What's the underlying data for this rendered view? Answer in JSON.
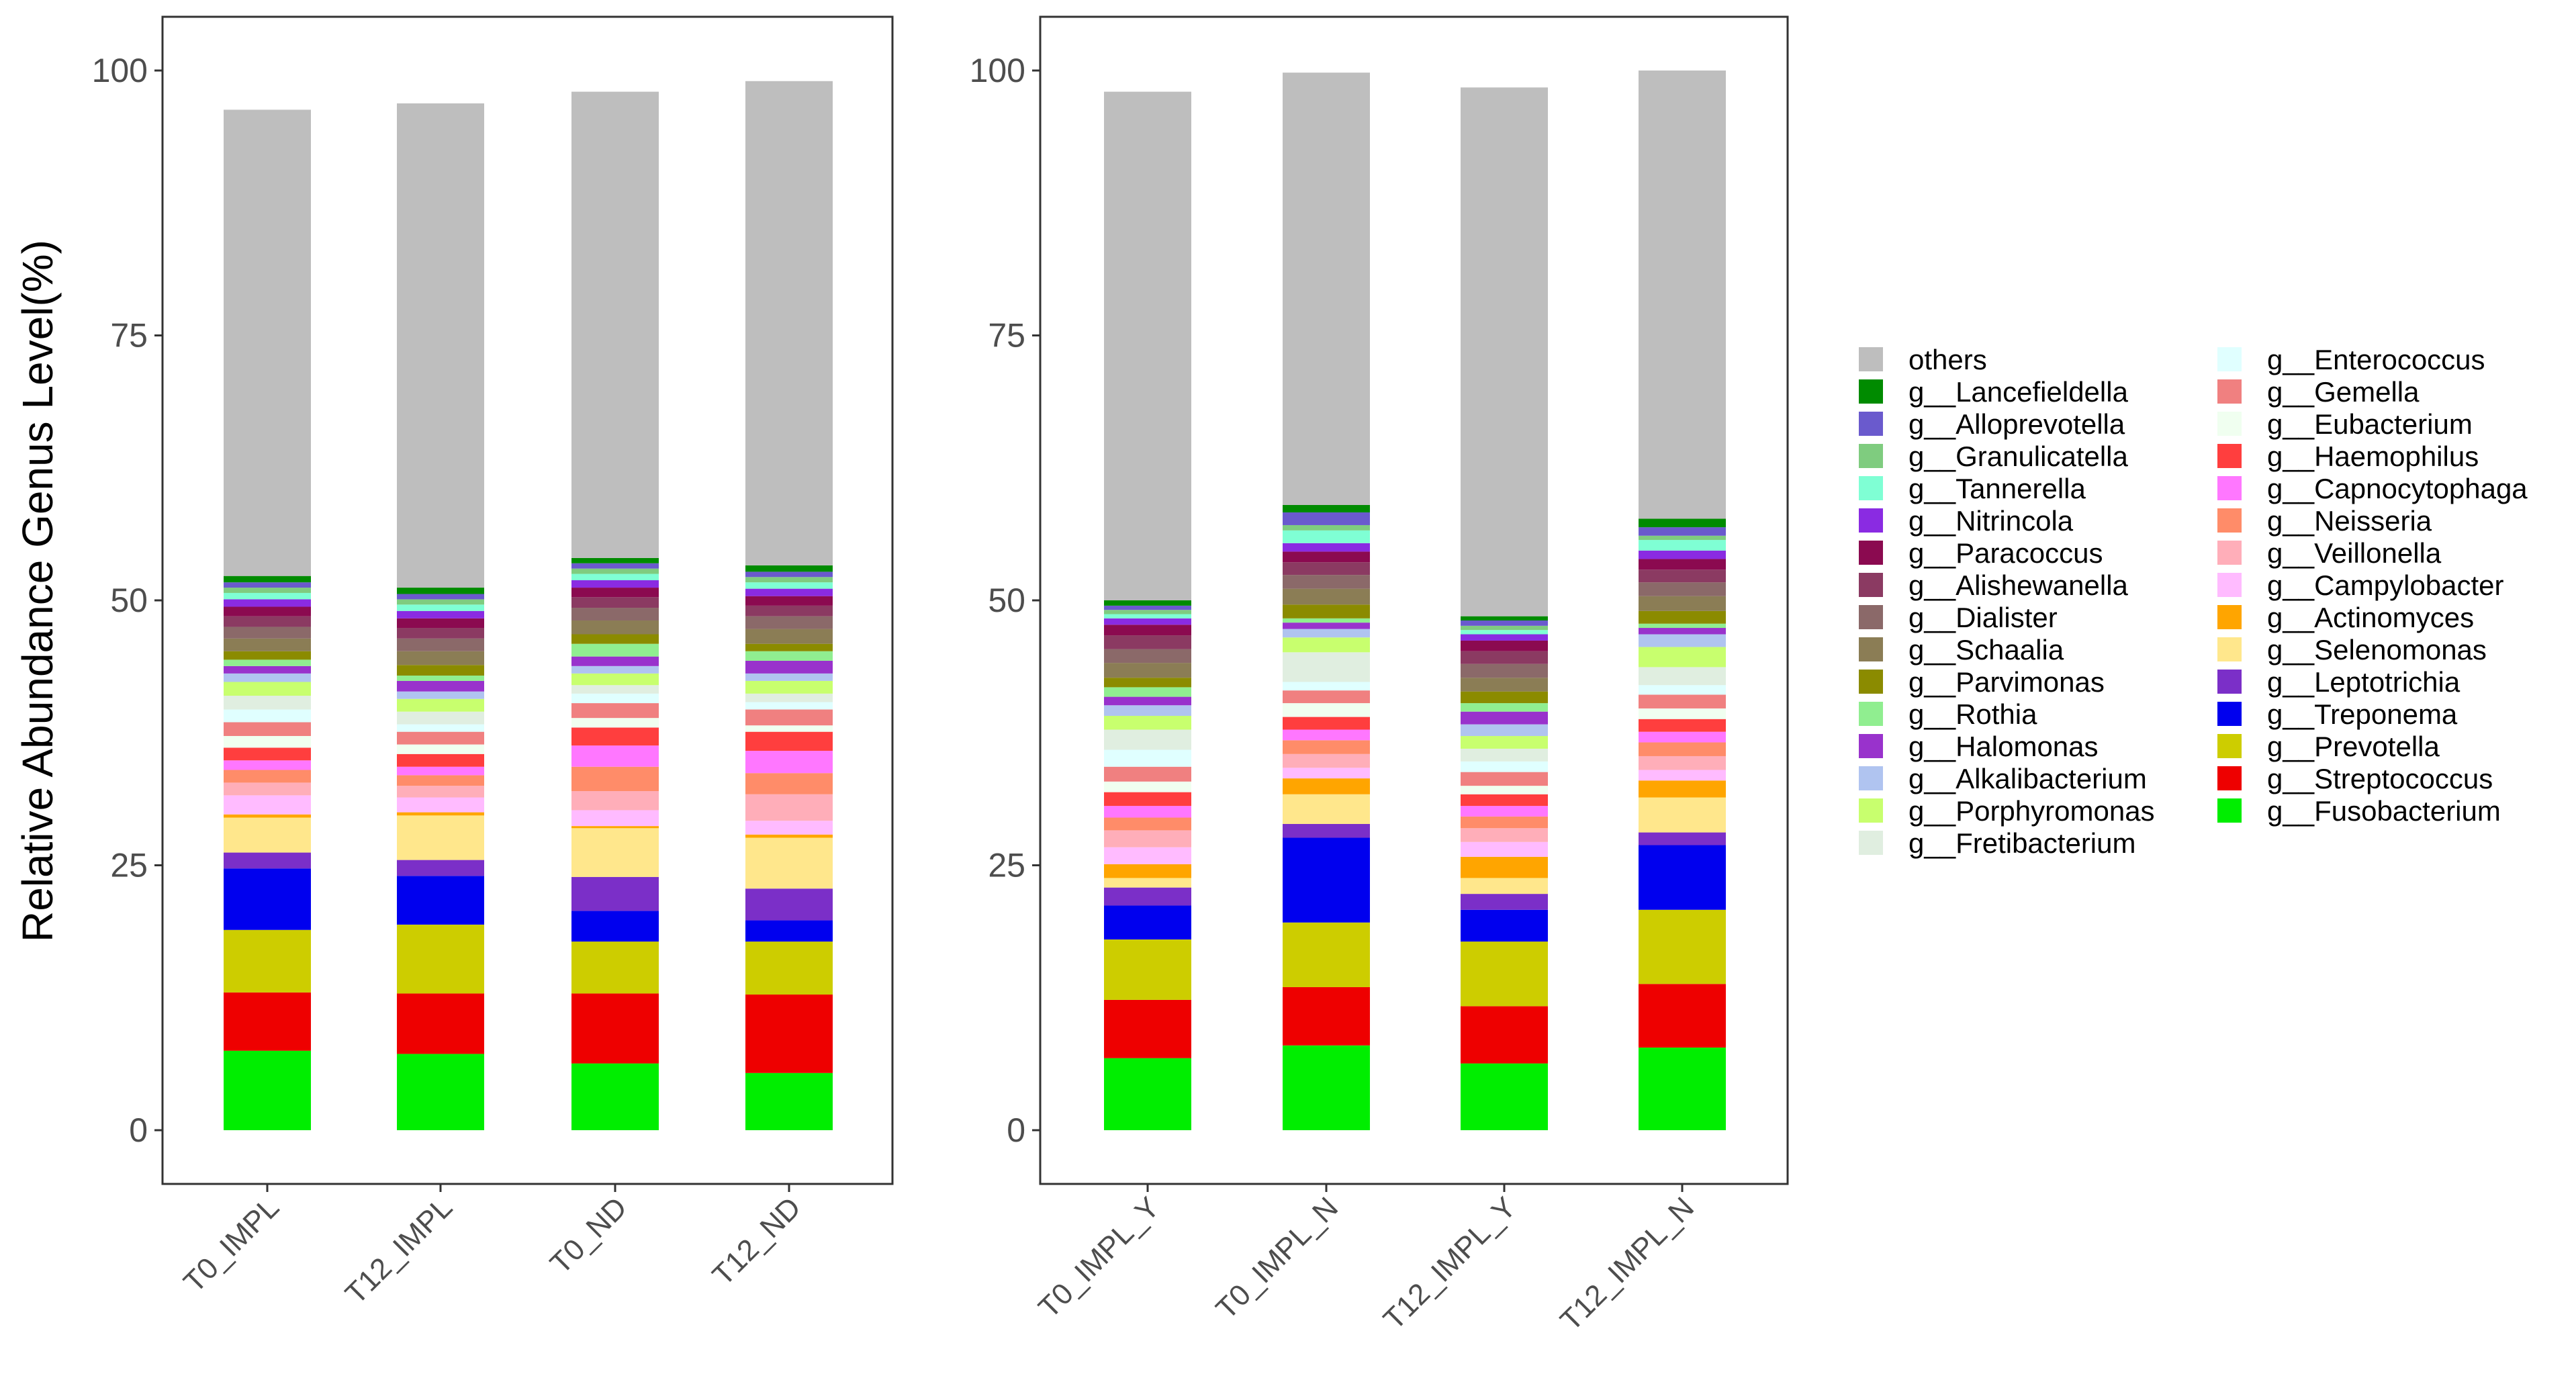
{
  "colors": {
    "others": "#BEBEBE",
    "g__Lancefieldella": "#008B00",
    "g__Alloprevotella": "#6A5ACD",
    "g__Granulicatella": "#7FCC7F",
    "g__Tannerella": "#7FFFD4",
    "g__Nitrincola": "#8A2BE2",
    "g__Paracoccus": "#8B0A50",
    "g__Alishewanella": "#8B3A62",
    "g__Dialister": "#8B6969",
    "g__Schaalia": "#8B7D55",
    "g__Parvimonas": "#8B8B00",
    "g__Rothia": "#90EE90",
    "g__Halomonas": "#9932CC",
    "g__Alkalibacterium": "#B0C4F0",
    "g__Porphyromonas": "#C8FF6E",
    "g__Fretibacterium": "#E0EEE0",
    "g__Enterococcus": "#E0FFFF",
    "g__Gemella": "#F08080",
    "g__Eubacterium": "#F0FFF0",
    "g__Haemophilus": "#FF3E3E",
    "g__Capnocytophaga": "#FF77FF",
    "g__Neisseria": "#FF8C69",
    "g__Veillonella": "#FFAEB9",
    "g__Campylobacter": "#FFBBFF",
    "g__Actinomyces": "#FFA500",
    "g__Selenomonas": "#FFE78C",
    "g__Leptotrichia": "#7B2FC8",
    "g__Treponema": "#0000EE",
    "g__Prevotella": "#CDCD00",
    "g__Streptococcus": "#EE0000",
    "g__Fusobacterium": "#00EE00"
  },
  "chart_data": [
    {
      "type": "bar",
      "stacked": true,
      "ylabel": "Relative Abundance Genus Level(%)",
      "ylim": [
        0,
        100
      ],
      "yticks": [
        "0",
        "25",
        "50",
        "75",
        "100"
      ],
      "categories": [
        "T0_IMPL",
        "T12_IMPL",
        "T0_ND",
        "T12_ND"
      ],
      "series": [
        {
          "name": "g__Fusobacterium",
          "values": [
            7.5,
            7.2,
            6.3,
            5.4
          ]
        },
        {
          "name": "g__Streptococcus",
          "values": [
            5.5,
            5.7,
            6.6,
            7.4
          ]
        },
        {
          "name": "g__Prevotella",
          "values": [
            5.9,
            6.5,
            4.9,
            5.0
          ]
        },
        {
          "name": "g__Treponema",
          "values": [
            5.8,
            4.6,
            2.9,
            2.0
          ]
        },
        {
          "name": "g__Leptotrichia",
          "values": [
            1.5,
            1.5,
            3.2,
            3.0
          ]
        },
        {
          "name": "g__Selenomonas",
          "values": [
            3.3,
            4.2,
            4.6,
            4.8
          ]
        },
        {
          "name": "g__Actinomyces",
          "values": [
            0.3,
            0.3,
            0.2,
            0.3
          ]
        },
        {
          "name": "g__Campylobacter",
          "values": [
            1.8,
            1.4,
            1.5,
            1.3
          ]
        },
        {
          "name": "g__Veillonella",
          "values": [
            1.2,
            1.1,
            1.8,
            2.5
          ]
        },
        {
          "name": "g__Neisseria",
          "values": [
            1.2,
            1.0,
            2.3,
            2.0
          ]
        },
        {
          "name": "g__Capnocytophaga",
          "values": [
            0.9,
            0.8,
            2.0,
            2.1
          ]
        },
        {
          "name": "g__Haemophilus",
          "values": [
            1.2,
            1.2,
            1.7,
            1.8
          ]
        },
        {
          "name": "g__Eubacterium",
          "values": [
            1.1,
            0.9,
            0.9,
            0.6
          ]
        },
        {
          "name": "g__Gemella",
          "values": [
            1.3,
            1.2,
            1.4,
            1.5
          ]
        },
        {
          "name": "g__Enterococcus",
          "values": [
            1.2,
            0.7,
            0.9,
            0.7
          ]
        },
        {
          "name": "g__Fretibacterium",
          "values": [
            1.3,
            1.2,
            0.8,
            0.8
          ]
        },
        {
          "name": "g__Porphyromonas",
          "values": [
            1.3,
            1.2,
            1.1,
            1.2
          ]
        },
        {
          "name": "g__Alkalibacterium",
          "values": [
            0.8,
            0.7,
            0.7,
            0.7
          ]
        },
        {
          "name": "g__Halomonas",
          "values": [
            0.7,
            1.0,
            0.9,
            1.2
          ]
        },
        {
          "name": "g__Rothia",
          "values": [
            0.6,
            0.5,
            1.2,
            0.9
          ]
        },
        {
          "name": "g__Parvimonas",
          "values": [
            0.8,
            1.0,
            0.9,
            0.7
          ]
        },
        {
          "name": "g__Schaalia",
          "values": [
            1.2,
            1.3,
            1.3,
            1.4
          ]
        },
        {
          "name": "g__Dialister",
          "values": [
            1.1,
            1.2,
            1.2,
            1.2
          ]
        },
        {
          "name": "g__Alishewanella",
          "values": [
            1.0,
            1.0,
            1.0,
            1.0
          ]
        },
        {
          "name": "g__Paracoccus",
          "values": [
            0.9,
            0.9,
            0.9,
            0.9
          ]
        },
        {
          "name": "g__Nitrincola",
          "values": [
            0.7,
            0.7,
            0.7,
            0.7
          ]
        },
        {
          "name": "g__Tannerella",
          "values": [
            0.6,
            0.6,
            0.6,
            0.6
          ]
        },
        {
          "name": "g__Granulicatella",
          "values": [
            0.5,
            0.5,
            0.5,
            0.5
          ]
        },
        {
          "name": "g__Alloprevotella",
          "values": [
            0.5,
            0.5,
            0.5,
            0.5
          ]
        },
        {
          "name": "g__Lancefieldella",
          "values": [
            0.6,
            0.6,
            0.5,
            0.6
          ]
        },
        {
          "name": "others",
          "values": [
            44.0,
            45.7,
            44.0,
            45.7
          ]
        }
      ]
    },
    {
      "type": "bar",
      "stacked": true,
      "ylabel": "",
      "ylim": [
        0,
        100
      ],
      "yticks": [
        "0",
        "25",
        "50",
        "75",
        "100"
      ],
      "categories": [
        "T0_IMPL_Y",
        "T0_IMPL_N",
        "T12_IMPL_Y",
        "T12_IMPL_N"
      ],
      "series": [
        {
          "name": "g__Fusobacterium",
          "values": [
            6.8,
            8.0,
            6.3,
            7.8
          ]
        },
        {
          "name": "g__Streptococcus",
          "values": [
            5.5,
            5.5,
            5.4,
            6.0
          ]
        },
        {
          "name": "g__Prevotella",
          "values": [
            5.7,
            6.1,
            6.1,
            7.0
          ]
        },
        {
          "name": "g__Treponema",
          "values": [
            3.2,
            8.0,
            3.0,
            6.1
          ]
        },
        {
          "name": "g__Leptotrichia",
          "values": [
            1.7,
            1.3,
            1.5,
            1.2
          ]
        },
        {
          "name": "g__Selenomonas",
          "values": [
            0.9,
            2.8,
            1.5,
            3.3
          ]
        },
        {
          "name": "g__Actinomyces",
          "values": [
            1.3,
            1.5,
            2.0,
            1.6
          ]
        },
        {
          "name": "g__Campylobacter",
          "values": [
            1.6,
            1.0,
            1.4,
            1.0
          ]
        },
        {
          "name": "g__Veillonella",
          "values": [
            1.6,
            1.3,
            1.3,
            1.3
          ]
        },
        {
          "name": "g__Neisseria",
          "values": [
            1.2,
            1.3,
            1.1,
            1.3
          ]
        },
        {
          "name": "g__Capnocytophaga",
          "values": [
            1.1,
            1.0,
            1.0,
            1.0
          ]
        },
        {
          "name": "g__Haemophilus",
          "values": [
            1.3,
            1.2,
            1.1,
            1.2
          ]
        },
        {
          "name": "g__Eubacterium",
          "values": [
            1.0,
            1.3,
            0.8,
            1.0
          ]
        },
        {
          "name": "g__Gemella",
          "values": [
            1.4,
            1.2,
            1.3,
            1.3
          ]
        },
        {
          "name": "g__Enterococcus",
          "values": [
            1.6,
            0.8,
            1.0,
            0.9
          ]
        },
        {
          "name": "g__Fretibacterium",
          "values": [
            1.9,
            2.8,
            1.2,
            1.7
          ]
        },
        {
          "name": "g__Porphyromonas",
          "values": [
            1.3,
            1.4,
            1.2,
            1.9
          ]
        },
        {
          "name": "g__Alkalibacterium",
          "values": [
            1.0,
            0.8,
            1.1,
            1.2
          ]
        },
        {
          "name": "g__Halomonas",
          "values": [
            0.8,
            0.6,
            1.2,
            0.6
          ]
        },
        {
          "name": "g__Rothia",
          "values": [
            0.9,
            0.4,
            0.8,
            0.4
          ]
        },
        {
          "name": "g__Parvimonas",
          "values": [
            0.9,
            1.3,
            1.1,
            1.2
          ]
        },
        {
          "name": "g__Schaalia",
          "values": [
            1.4,
            1.5,
            1.3,
            1.4
          ]
        },
        {
          "name": "g__Dialister",
          "values": [
            1.3,
            1.3,
            1.3,
            1.3
          ]
        },
        {
          "name": "g__Alishewanella",
          "values": [
            1.3,
            1.2,
            1.2,
            1.2
          ]
        },
        {
          "name": "g__Paracoccus",
          "values": [
            1.0,
            1.0,
            1.0,
            1.0
          ]
        },
        {
          "name": "g__Nitrincola",
          "values": [
            0.6,
            0.8,
            0.6,
            0.8
          ]
        },
        {
          "name": "g__Tannerella",
          "values": [
            0.4,
            1.2,
            0.4,
            1.0
          ]
        },
        {
          "name": "g__Granulicatella",
          "values": [
            0.4,
            0.5,
            0.4,
            0.4
          ]
        },
        {
          "name": "g__Alloprevotella",
          "values": [
            0.4,
            1.2,
            0.5,
            0.8
          ]
        },
        {
          "name": "g__Lancefieldella",
          "values": [
            0.5,
            0.7,
            0.4,
            0.8
          ]
        },
        {
          "name": "others",
          "values": [
            48.0,
            40.8,
            49.9,
            42.3
          ]
        }
      ]
    }
  ],
  "legend": {
    "column1": [
      "others",
      "g__Lancefieldella",
      "g__Alloprevotella",
      "g__Granulicatella",
      "g__Tannerella",
      "g__Nitrincola",
      "g__Paracoccus",
      "g__Alishewanella",
      "g__Dialister",
      "g__Schaalia",
      "g__Parvimonas",
      "g__Rothia",
      "g__Halomonas",
      "g__Alkalibacterium",
      "g__Porphyromonas",
      "g__Fretibacterium"
    ],
    "column2": [
      "g__Enterococcus",
      "g__Gemella",
      "g__Eubacterium",
      "g__Haemophilus",
      "g__Capnocytophaga",
      "g__Neisseria",
      "g__Veillonella",
      "g__Campylobacter",
      "g__Actinomyces",
      "g__Selenomonas",
      "g__Leptotrichia",
      "g__Treponema",
      "g__Prevotella",
      "g__Streptococcus",
      "g__Fusobacterium"
    ]
  }
}
